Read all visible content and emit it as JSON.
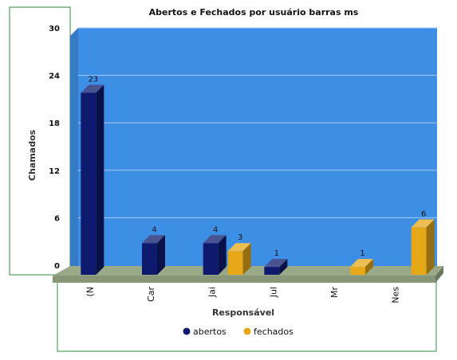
{
  "chart_data": {
    "type": "bar",
    "title": "Abertos e Fechados por usuário barras ms",
    "xlabel": "Responsável",
    "ylabel": "Chamados",
    "categories": [
      "(N",
      "Car",
      "Jai",
      "Jul",
      "Mr",
      "Nes"
    ],
    "series": [
      {
        "name": "abertos",
        "values": [
          23,
          4,
          4,
          1,
          0,
          0
        ],
        "color": "#0d1a6e"
      },
      {
        "name": "fechados",
        "values": [
          0,
          0,
          3,
          0,
          1,
          6
        ],
        "color": "#e6a817"
      }
    ],
    "yticks": [
      0,
      6,
      12,
      18,
      24,
      30
    ],
    "ylim": [
      0,
      30
    ],
    "grid": true,
    "legend_position": "bottom",
    "plot_background": "#3d8fe6",
    "floor_color": "#9aaa88",
    "frame_color": "#2e8b40"
  }
}
